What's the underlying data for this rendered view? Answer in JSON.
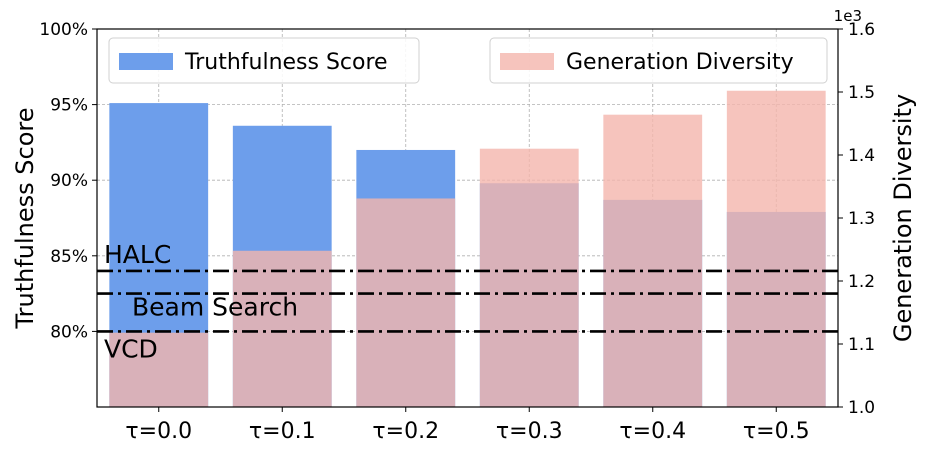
{
  "chart_data": {
    "type": "bar",
    "categories": [
      "τ=0.0",
      "τ=0.1",
      "τ=0.2",
      "τ=0.3",
      "τ=0.4",
      "τ=0.5"
    ],
    "series": [
      {
        "name": "Truthfulness Score",
        "axis": "left",
        "color": "#6d9eeb",
        "values": [
          95.1,
          93.6,
          92.0,
          89.8,
          88.7,
          87.9
        ]
      },
      {
        "name": "Generation Diversity",
        "axis": "right",
        "color": "#f4b5ad",
        "values": [
          1.118,
          1.248,
          1.331,
          1.41,
          1.464,
          1.502
        ]
      }
    ],
    "left_axis": {
      "label": "Truthfulness Score",
      "min": 75,
      "max": 100,
      "ticks": [
        80,
        85,
        90,
        95,
        100
      ],
      "tick_labels": [
        "80%",
        "85%",
        "90%",
        "95%",
        "100%"
      ]
    },
    "right_axis": {
      "label": "Generation Diversity",
      "multiplier": "1e3",
      "min": 1.0,
      "max": 1.6,
      "ticks": [
        1.0,
        1.1,
        1.2,
        1.3,
        1.4,
        1.5,
        1.6
      ],
      "tick_labels": [
        "1.0",
        "1.1",
        "1.2",
        "1.3",
        "1.4",
        "1.5",
        "1.6"
      ]
    },
    "baselines": [
      {
        "label": "HALC",
        "value": 84.0
      },
      {
        "label": "Beam Search",
        "value": 82.5
      },
      {
        "label": "VCD",
        "value": 80.0
      }
    ],
    "legend": [
      {
        "label": "Truthfulness Score",
        "placement": "top-left"
      },
      {
        "label": "Generation Diversity",
        "placement": "top-right"
      }
    ],
    "grid": true
  }
}
